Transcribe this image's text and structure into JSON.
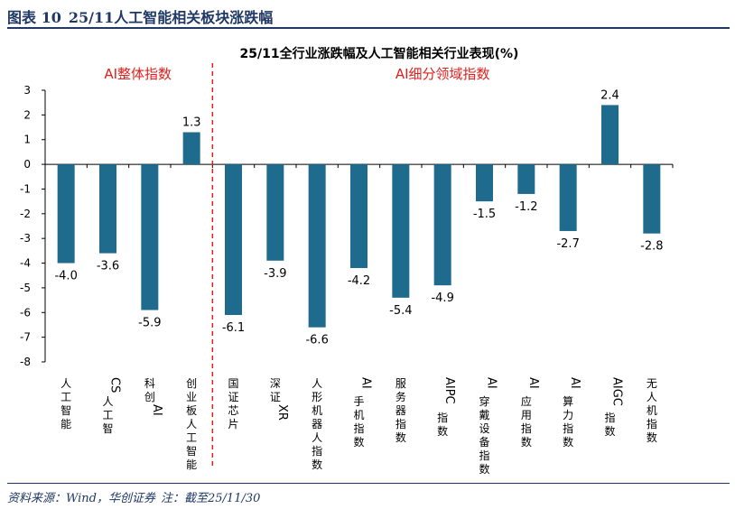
{
  "figure": {
    "number_label": "图表 10",
    "title": "25/11人工智能相关板块涨跌幅"
  },
  "footer": {
    "source": "资料来源：Wind，华创证券",
    "note": "注：截至25/11/30"
  },
  "colors": {
    "bar": "#1f6b8e",
    "header": "#1f3864",
    "annotation": "#e0201c"
  },
  "chart_data": {
    "type": "bar",
    "title": "25/11全行业涨跌幅及人工智能相关行业表现(%)",
    "categories": [
      "人工智能",
      "CS人工智",
      "科创AI",
      "创业板人工智能",
      "国证芯片",
      "深证XR",
      "人形机器人指数",
      "AI手机指数",
      "服务器指数",
      "AIPC指数",
      "AI穿戴设备指数",
      "AI应用指数",
      "AI算力指数",
      "AIGC指数",
      "无人机指数"
    ],
    "values": [
      -4.0,
      -3.6,
      -5.9,
      1.3,
      -6.1,
      -3.9,
      -6.6,
      -4.2,
      -5.4,
      -4.9,
      -1.5,
      -1.2,
      -2.7,
      2.4,
      -2.8
    ],
    "value_labels": [
      "-4.0",
      "-3.6",
      "-5.9",
      "1.3",
      "-6.1",
      "-3.9",
      "-6.6",
      "-4.2",
      "-5.4",
      "-4.9",
      "-1.5",
      "-1.2",
      "-2.7",
      "2.4",
      "-2.8"
    ],
    "yticks": [
      "3",
      "2",
      "1",
      "0",
      "-1",
      "-2",
      "-3",
      "-4",
      "-5",
      "-6",
      "-7",
      "-8"
    ],
    "ylim": [
      -8,
      3
    ],
    "grid": false,
    "legend": false,
    "xlabel": "",
    "ylabel": "",
    "annotations": [
      {
        "text": "AI整体指数"
      },
      {
        "text": "AI细分领域指数"
      }
    ],
    "divider_after_category": 3
  }
}
